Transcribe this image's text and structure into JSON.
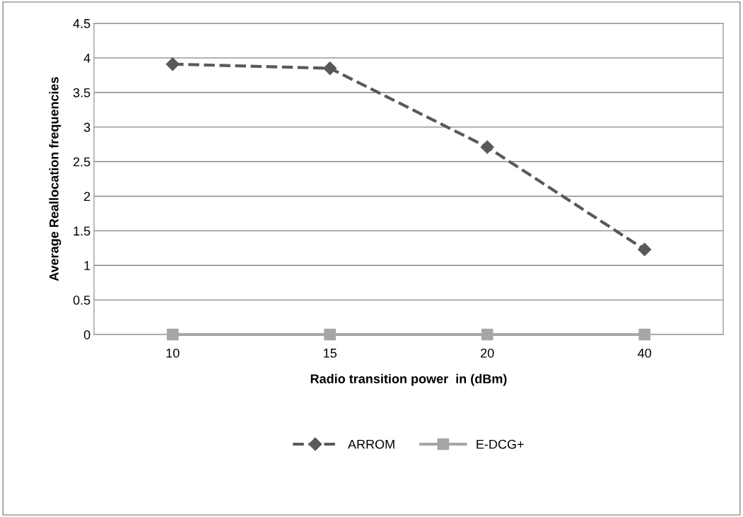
{
  "chart_data": {
    "type": "line",
    "xlabel": "Radio transition power  in (dBm)",
    "ylabel": "Average Reallocation frequencies",
    "categories": [
      "10",
      "15",
      "20",
      "40"
    ],
    "series": [
      {
        "name": "ARROM",
        "color": "#595959",
        "values": [
          3.91,
          3.85,
          2.71,
          1.23
        ],
        "marker": "diamond",
        "line_style": "dashed"
      },
      {
        "name": "E-DCG+",
        "color": "#a6a6a6",
        "values": [
          0,
          0,
          0,
          0
        ],
        "marker": "square",
        "line_style": "solid"
      }
    ],
    "ylim": [
      0,
      4.5
    ],
    "yticks": [
      0,
      0.5,
      1,
      1.5,
      2,
      2.5,
      3,
      3.5,
      4,
      4.5
    ],
    "grid": "y",
    "legend": "bottom"
  }
}
